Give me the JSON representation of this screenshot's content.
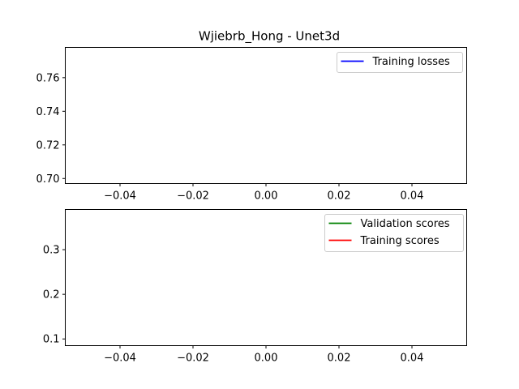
{
  "figure": {
    "title": "Wjiebrb_Hong - Unet3d"
  },
  "chart_data": [
    {
      "type": "line",
      "title": "Wjiebrb_Hong - Unet3d",
      "xlabel": "",
      "ylabel": "",
      "xlim": [
        -0.055,
        0.055
      ],
      "ylim": [
        0.697,
        0.778
      ],
      "xticks": [
        -0.04,
        -0.02,
        0.0,
        0.02,
        0.04
      ],
      "xtick_labels": [
        "−0.04",
        "−0.02",
        "0.00",
        "0.02",
        "0.04"
      ],
      "yticks": [
        0.7,
        0.72,
        0.74,
        0.76
      ],
      "ytick_labels": [
        "0.70",
        "0.72",
        "0.74",
        "0.76"
      ],
      "grid": false,
      "legend_position": "upper right",
      "series": [
        {
          "name": "Training losses",
          "color": "#0000ff",
          "x": [],
          "y": []
        }
      ]
    },
    {
      "type": "line",
      "title": "",
      "xlabel": "",
      "ylabel": "",
      "xlim": [
        -0.055,
        0.055
      ],
      "ylim": [
        0.085,
        0.39
      ],
      "xticks": [
        -0.04,
        -0.02,
        0.0,
        0.02,
        0.04
      ],
      "xtick_labels": [
        "−0.04",
        "−0.02",
        "0.00",
        "0.02",
        "0.04"
      ],
      "yticks": [
        0.1,
        0.2,
        0.3
      ],
      "ytick_labels": [
        "0.1",
        "0.2",
        "0.3"
      ],
      "grid": false,
      "legend_position": "upper right",
      "series": [
        {
          "name": "Validation scores",
          "color": "#008000",
          "x": [],
          "y": []
        },
        {
          "name": "Training scores",
          "color": "#ff0000",
          "x": [],
          "y": []
        }
      ]
    }
  ]
}
